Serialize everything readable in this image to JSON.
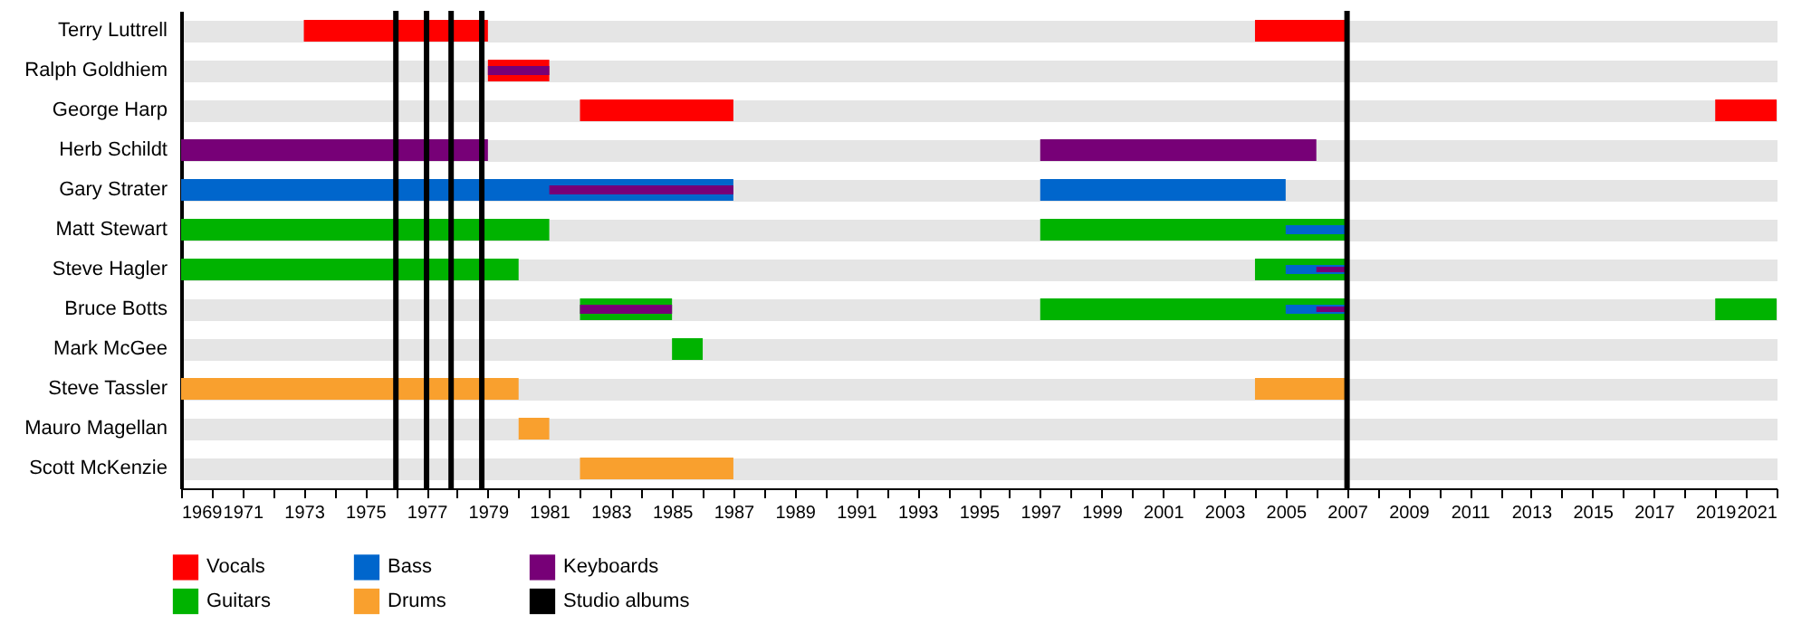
{
  "chart_data": {
    "type": "bar",
    "orientation": "horizontal",
    "categories": [
      "Terry Luttrell",
      "Ralph Goldhiem",
      "George Harp",
      "Herb Schildt",
      "Gary Strater",
      "Matt Stewart",
      "Steve Hagler",
      "Bruce Botts",
      "Mark McGee",
      "Steve Tassler",
      "Mauro Magellan",
      "Scott McKenzie"
    ],
    "series": [
      {
        "name": "Vocals",
        "color": "#ff0000",
        "base": [
          1973,
          1979,
          1982,
          null,
          null,
          null,
          null,
          null,
          null,
          null,
          null,
          null
        ],
        "values": [
          6,
          2,
          5,
          null,
          null,
          null,
          null,
          null,
          null,
          null,
          null,
          null
        ]
      },
      {
        "color": "#ff0000",
        "base": [
          2004,
          null,
          2019,
          null,
          null,
          null,
          null,
          null,
          null,
          null,
          null,
          null
        ],
        "values": [
          3,
          null,
          2,
          null,
          null,
          null,
          null,
          null,
          null,
          null,
          null,
          null
        ]
      },
      {
        "name": "Guitars",
        "color": "#00b300",
        "base": [
          null,
          null,
          null,
          null,
          null,
          1969,
          1969,
          1982,
          1985,
          null,
          null,
          null
        ],
        "values": [
          null,
          null,
          null,
          null,
          null,
          12,
          11,
          3,
          1,
          null,
          null,
          null
        ]
      },
      {
        "color": "#00b300",
        "base": [
          null,
          null,
          null,
          null,
          null,
          1997,
          2004,
          1997,
          null,
          null,
          null,
          null
        ],
        "values": [
          null,
          null,
          null,
          null,
          null,
          10,
          3,
          10,
          null,
          null,
          null,
          null
        ]
      },
      {
        "color": "#00b300",
        "base": [
          null,
          null,
          null,
          null,
          null,
          null,
          null,
          2019,
          null,
          null,
          null,
          null
        ],
        "values": [
          null,
          null,
          null,
          null,
          null,
          null,
          null,
          2,
          null,
          null,
          null,
          null
        ]
      },
      {
        "name": "Bass",
        "color": "#0066cc",
        "base": [
          null,
          null,
          null,
          null,
          1969,
          null,
          null,
          null,
          null,
          null,
          null,
          null
        ],
        "values": [
          null,
          null,
          null,
          null,
          18,
          null,
          null,
          null,
          null,
          null,
          null,
          null
        ]
      },
      {
        "color": "#0066cc",
        "base": [
          null,
          null,
          null,
          null,
          1997,
          null,
          null,
          null,
          null,
          null,
          null,
          null
        ],
        "values": [
          null,
          null,
          null,
          null,
          8,
          null,
          null,
          null,
          null,
          null,
          null,
          null
        ]
      },
      {
        "name": "Drums",
        "color": "#f9a02e",
        "base": [
          null,
          null,
          null,
          null,
          null,
          null,
          null,
          null,
          null,
          1969,
          1980,
          1982
        ],
        "values": [
          null,
          null,
          null,
          null,
          null,
          null,
          null,
          null,
          null,
          11,
          1,
          5
        ]
      },
      {
        "color": "#f9a02e",
        "base": [
          null,
          null,
          null,
          null,
          null,
          null,
          null,
          null,
          null,
          2004,
          null,
          null
        ],
        "values": [
          null,
          null,
          null,
          null,
          null,
          null,
          null,
          null,
          null,
          3,
          null,
          null
        ]
      },
      {
        "name": "Keyboards",
        "color": "#770077",
        "base": [
          null,
          1979,
          null,
          1969,
          1981,
          null,
          null,
          1982,
          null,
          null,
          null,
          null
        ],
        "values": [
          null,
          2,
          null,
          10,
          6,
          null,
          null,
          3,
          null,
          null,
          null,
          null
        ]
      },
      {
        "color": "#770077",
        "base": [
          null,
          null,
          null,
          1997,
          null,
          null,
          null,
          null,
          null,
          null,
          null,
          null
        ],
        "values": [
          null,
          null,
          null,
          9,
          null,
          null,
          null,
          null,
          null,
          null,
          null,
          null
        ]
      },
      {
        "color": "#0066cc",
        "base": [
          null,
          null,
          null,
          null,
          null,
          2005,
          2005,
          2005,
          null,
          null,
          null,
          null
        ],
        "values": [
          null,
          null,
          null,
          null,
          null,
          2,
          2,
          2,
          null,
          null,
          null,
          null
        ]
      },
      {
        "color": "#770077",
        "base": [
          null,
          null,
          null,
          null,
          null,
          null,
          2006,
          2006,
          null,
          null,
          null,
          null
        ],
        "values": [
          null,
          null,
          null,
          null,
          null,
          null,
          1,
          1,
          null,
          null,
          null,
          null
        ]
      }
    ],
    "ref_lines": [
      {
        "axis": "x",
        "value": 1976,
        "label": "Studio albums",
        "color": "#000000"
      },
      {
        "axis": "x",
        "value": 1977,
        "color": "#000000"
      },
      {
        "axis": "x",
        "value": 1977.8,
        "color": "#000000"
      },
      {
        "axis": "x",
        "value": 1978.8,
        "color": "#000000"
      },
      {
        "axis": "x",
        "value": 2007,
        "color": "#000000"
      }
    ],
    "xlim": [
      1969,
      2021
    ],
    "xticks": [
      1969,
      {
        "value": 1970,
        "label": null
      },
      1971,
      {
        "value": 1972,
        "label": null
      },
      1973,
      {
        "value": 1974,
        "label": null
      },
      1975,
      {
        "value": 1976,
        "label": null
      },
      1977,
      {
        "value": 1978,
        "label": null
      },
      1979,
      {
        "value": 1980,
        "label": null
      },
      1981,
      {
        "value": 1982,
        "label": null
      },
      1983,
      {
        "value": 1984,
        "label": null
      },
      1985,
      {
        "value": 1986,
        "label": null
      },
      1987,
      {
        "value": 1988,
        "label": null
      },
      1989,
      {
        "value": 1990,
        "label": null
      },
      1991,
      {
        "value": 1992,
        "label": null
      },
      1993,
      {
        "value": 1994,
        "label": null
      },
      1995,
      {
        "value": 1996,
        "label": null
      },
      1997,
      {
        "value": 1998,
        "label": null
      },
      1999,
      {
        "value": 2000,
        "label": null
      },
      2001,
      {
        "value": 2002,
        "label": null
      },
      2003,
      {
        "value": 2004,
        "label": null
      },
      2005,
      {
        "value": 2006,
        "label": null
      },
      2007,
      {
        "value": 2008,
        "label": null
      },
      2009,
      {
        "value": 2010,
        "label": null
      },
      2011,
      {
        "value": 2012,
        "label": null
      },
      2013,
      {
        "value": 2014,
        "label": null
      },
      2015,
      {
        "value": 2016,
        "label": null
      },
      2017,
      {
        "value": 2018,
        "label": null
      },
      2019,
      {
        "value": 2020,
        "label": null
      },
      2021
    ],
    "grid": "y",
    "legend": "bottom left"
  }
}
